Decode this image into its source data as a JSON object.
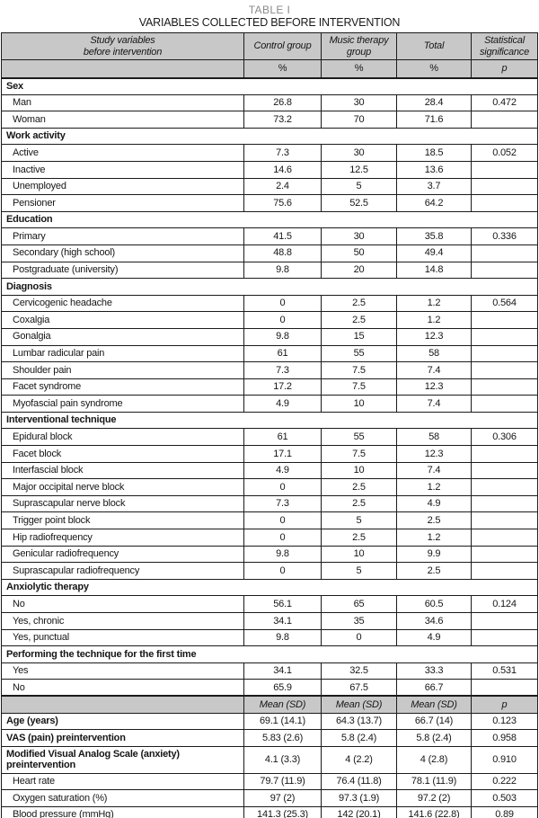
{
  "page": {
    "table_label": "TABLE I",
    "table_title": "VARIABLES COLLECTED BEFORE INTERVENTION"
  },
  "colors": {
    "header_fill": "#c8c8c8",
    "border": "#1b1b1b",
    "table_label_gray": "#8a8a8a",
    "text": "#161616"
  },
  "table": {
    "columns": [
      {
        "label": "Study variables\nbefore intervention",
        "sub": ""
      },
      {
        "label": "Control group",
        "sub": "%"
      },
      {
        "label": "Music therapy\ngroup",
        "sub": "%"
      },
      {
        "label": "Total",
        "sub": "%"
      },
      {
        "label": "Statistical\nsignificance",
        "sub": "p"
      }
    ],
    "rows": [
      {
        "type": "section",
        "label": "Sex"
      },
      {
        "type": "data",
        "label": "Man",
        "values": [
          "26.8",
          "30",
          "28.4",
          "0.472"
        ]
      },
      {
        "type": "data",
        "label": "Woman",
        "values": [
          "73.2",
          "70",
          "71.6",
          ""
        ]
      },
      {
        "type": "section",
        "label": "Work activity"
      },
      {
        "type": "data",
        "label": "Active",
        "values": [
          "7.3",
          "30",
          "18.5",
          "0.052"
        ]
      },
      {
        "type": "data",
        "label": "Inactive",
        "values": [
          "14.6",
          "12.5",
          "13.6",
          ""
        ]
      },
      {
        "type": "data",
        "label": "Unemployed",
        "values": [
          "2.4",
          "5",
          "3.7",
          ""
        ]
      },
      {
        "type": "data",
        "label": "Pensioner",
        "values": [
          "75.6",
          "52.5",
          "64.2",
          ""
        ]
      },
      {
        "type": "section",
        "label": "Education"
      },
      {
        "type": "data",
        "label": "Primary",
        "values": [
          "41.5",
          "30",
          "35.8",
          "0.336"
        ]
      },
      {
        "type": "data",
        "label": "Secondary (high school)",
        "values": [
          "48.8",
          "50",
          "49.4",
          ""
        ]
      },
      {
        "type": "data",
        "label": "Postgraduate (university)",
        "values": [
          "9.8",
          "20",
          "14.8",
          ""
        ]
      },
      {
        "type": "section",
        "label": "Diagnosis"
      },
      {
        "type": "data",
        "label": "Cervicogenic headache",
        "values": [
          "0",
          "2.5",
          "1.2",
          "0.564"
        ]
      },
      {
        "type": "data",
        "label": "Coxalgia",
        "values": [
          "0",
          "2.5",
          "1.2",
          ""
        ]
      },
      {
        "type": "data",
        "label": "Gonalgia",
        "values": [
          "9.8",
          "15",
          "12.3",
          ""
        ]
      },
      {
        "type": "data",
        "label": "Lumbar radicular pain",
        "values": [
          "61",
          "55",
          "58",
          ""
        ]
      },
      {
        "type": "data",
        "label": "Shoulder pain",
        "values": [
          "7.3",
          "7.5",
          "7.4",
          ""
        ]
      },
      {
        "type": "data",
        "label": "Facet syndrome",
        "values": [
          "17.2",
          "7.5",
          "12.3",
          ""
        ]
      },
      {
        "type": "data",
        "label": "Myofascial pain syndrome",
        "values": [
          "4.9",
          "10",
          "7.4",
          ""
        ]
      },
      {
        "type": "section",
        "label": "Interventional technique"
      },
      {
        "type": "data",
        "label": "Epidural block",
        "values": [
          "61",
          "55",
          "58",
          "0.306"
        ]
      },
      {
        "type": "data",
        "label": "Facet block",
        "values": [
          "17.1",
          "7.5",
          "12.3",
          ""
        ]
      },
      {
        "type": "data",
        "label": "Interfascial block",
        "values": [
          "4.9",
          "10",
          "7.4",
          ""
        ]
      },
      {
        "type": "data",
        "label": "Major occipital nerve block",
        "values": [
          "0",
          "2.5",
          "1.2",
          ""
        ]
      },
      {
        "type": "data",
        "label": "Suprascapular nerve block",
        "values": [
          "7.3",
          "2.5",
          "4.9",
          ""
        ]
      },
      {
        "type": "data",
        "label": "Trigger point block",
        "values": [
          "0",
          "5",
          "2.5",
          ""
        ]
      },
      {
        "type": "data",
        "label": "Hip radiofrequency",
        "values": [
          "0",
          "2.5",
          "1.2",
          ""
        ]
      },
      {
        "type": "data",
        "label": "Genicular radiofrequency",
        "values": [
          "9.8",
          "10",
          "9.9",
          ""
        ]
      },
      {
        "type": "data",
        "label": "Suprascapular radiofrequency",
        "values": [
          "0",
          "5",
          "2.5",
          ""
        ]
      },
      {
        "type": "section",
        "label": "Anxiolytic therapy"
      },
      {
        "type": "data",
        "label": "No",
        "values": [
          "56.1",
          "65",
          "60.5",
          "0.124"
        ]
      },
      {
        "type": "data",
        "label": "Yes, chronic",
        "values": [
          "34.1",
          "35",
          "34.6",
          ""
        ]
      },
      {
        "type": "data",
        "label": "Yes, punctual",
        "values": [
          "9.8",
          "0",
          "4.9",
          ""
        ]
      },
      {
        "type": "section",
        "label": "Performing the technique for the first time"
      },
      {
        "type": "data",
        "label": "Yes",
        "values": [
          "34.1",
          "32.5",
          "33.3",
          "0.531"
        ]
      },
      {
        "type": "data",
        "label": "No",
        "values": [
          "65.9",
          "67.5",
          "66.7",
          ""
        ]
      },
      {
        "type": "measure_header",
        "label": "",
        "values": [
          "Mean (SD)",
          "Mean (SD)",
          "Mean (SD)",
          "p"
        ]
      },
      {
        "type": "data_bold",
        "label": "Age (years)",
        "values": [
          "69.1 (14.1)",
          "64.3 (13.7)",
          "66.7 (14)",
          "0.123"
        ]
      },
      {
        "type": "data_bold",
        "label": "VAS (pain) preintervention",
        "values": [
          "5.83 (2.6)",
          "5.8 (2.4)",
          "5.8 (2.4)",
          "0.958"
        ]
      },
      {
        "type": "data_bold",
        "label": "Modified Visual Analog Scale (anxiety) preintervention",
        "values": [
          "4.1 (3.3)",
          "4 (2.2)",
          "4 (2.8)",
          "0.910"
        ]
      },
      {
        "type": "data",
        "label": "Heart rate",
        "values": [
          "79.7 (11.9)",
          "76.4 (11.8)",
          "78.1 (11.9)",
          "0.222"
        ]
      },
      {
        "type": "data",
        "label": "Oxygen saturation (%)",
        "values": [
          "97 (2)",
          "97.3 (1.9)",
          "97.2 (2)",
          "0.503"
        ]
      },
      {
        "type": "data",
        "label": "Blood pressure (mmHg)",
        "values": [
          "141.3 (25.3)",
          "142 (20.1)",
          "141.6 (22.8)",
          "0.89"
        ]
      }
    ]
  }
}
